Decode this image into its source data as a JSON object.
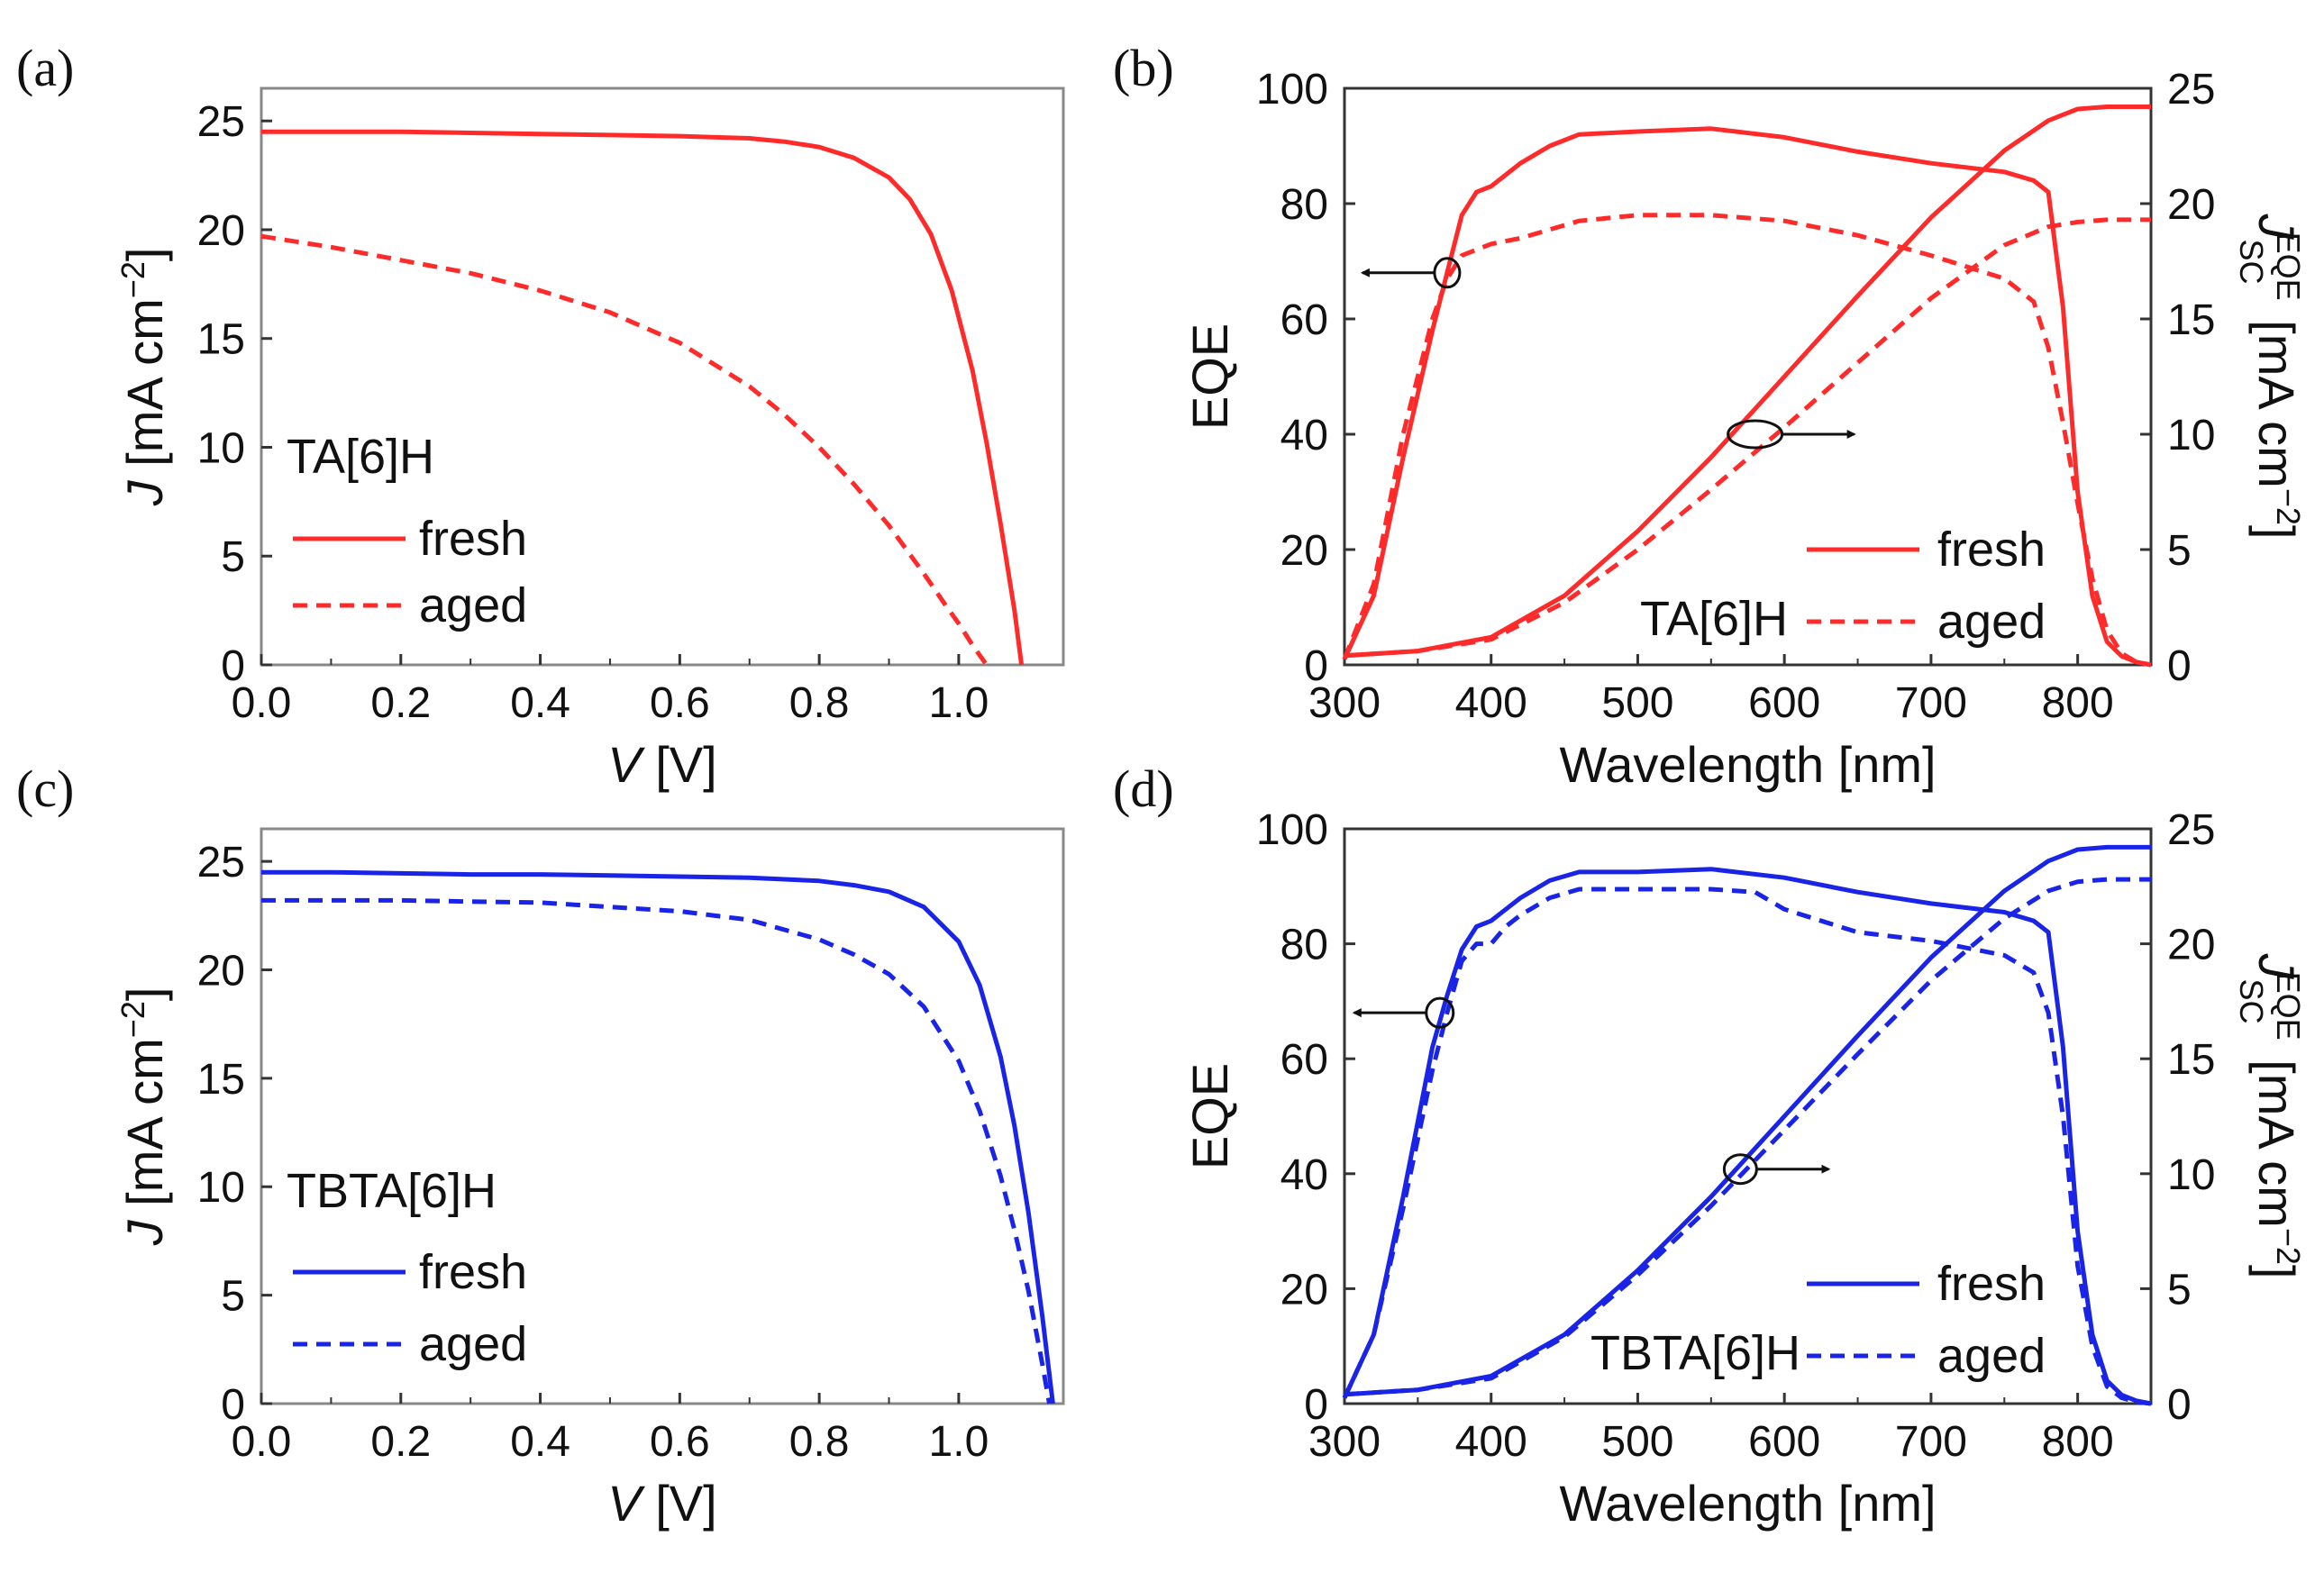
{
  "chart_data": [
    {
      "id": "a",
      "type": "line",
      "panel_label": "(a)",
      "sample_label": "TA[6]H",
      "xlabel": {
        "var": "V",
        "unit": " [V]"
      },
      "ylabel": {
        "var": "J",
        "unit": " [mA cm",
        "sup": "−2",
        "close": "]"
      },
      "xlim": [
        0,
        1.15
      ],
      "ylim": [
        0,
        26.5
      ],
      "xticks": [
        0,
        0.2,
        0.4,
        0.6,
        0.8,
        1.0
      ],
      "xtick_labels": [
        "0.0",
        "0.2",
        "0.4",
        "0.6",
        "0.8",
        "1.0"
      ],
      "yticks": [
        0,
        5,
        10,
        15,
        20,
        25
      ],
      "ytick_labels": [
        "0",
        "5",
        "10",
        "15",
        "20",
        "25"
      ],
      "color": "#ff2b2b",
      "series": [
        {
          "name": "fresh",
          "style": "solid",
          "axis": "left",
          "x": [
            0,
            0.1,
            0.2,
            0.3,
            0.4,
            0.5,
            0.6,
            0.7,
            0.75,
            0.8,
            0.85,
            0.9,
            0.93,
            0.96,
            0.99,
            1.02,
            1.04,
            1.06,
            1.08,
            1.09
          ],
          "y": [
            24.5,
            24.5,
            24.5,
            24.45,
            24.4,
            24.35,
            24.3,
            24.2,
            24.05,
            23.8,
            23.3,
            22.4,
            21.4,
            19.8,
            17.2,
            13.5,
            10.2,
            6.5,
            2.5,
            0
          ]
        },
        {
          "name": "aged",
          "style": "dashed",
          "axis": "left",
          "x": [
            0,
            0.1,
            0.2,
            0.3,
            0.4,
            0.5,
            0.6,
            0.7,
            0.75,
            0.8,
            0.85,
            0.9,
            0.95,
            0.98,
            1.0,
            1.02,
            1.04
          ],
          "y": [
            19.7,
            19.2,
            18.6,
            18.0,
            17.2,
            16.2,
            14.8,
            12.8,
            11.5,
            10.0,
            8.3,
            6.4,
            4.2,
            2.8,
            1.9,
            0.9,
            0
          ]
        }
      ]
    },
    {
      "id": "b",
      "type": "line",
      "panel_label": "(b)",
      "sample_label": "TA[6]H",
      "xlabel": "Wavelength [nm]",
      "ylabel": "EQE",
      "y2label": {
        "main": "J",
        "sub": "SC",
        "sup": "EQE",
        "unit": " [mA cm",
        "unit_sup": "−2",
        "close": "]"
      },
      "xlim": [
        300,
        850
      ],
      "ylim": [
        0,
        100
      ],
      "y2lim": [
        0,
        25
      ],
      "xticks": [
        300,
        400,
        500,
        600,
        700,
        800
      ],
      "xtick_labels": [
        "300",
        "400",
        "500",
        "600",
        "700",
        "800"
      ],
      "yticks": [
        0,
        20,
        40,
        60,
        80,
        100
      ],
      "ytick_labels": [
        "0",
        "20",
        "40",
        "60",
        "80",
        "100"
      ],
      "y2ticks": [
        0,
        5,
        10,
        15,
        20,
        25
      ],
      "y2tick_labels": [
        "0",
        "5",
        "10",
        "15",
        "20",
        "25"
      ],
      "color": "#ff2b2b",
      "series": [
        {
          "name": "fresh",
          "style": "solid",
          "axis": "left",
          "x": [
            300,
            320,
            340,
            360,
            370,
            380,
            390,
            400,
            410,
            420,
            440,
            460,
            500,
            550,
            600,
            650,
            700,
            750,
            770,
            780,
            790,
            800,
            810,
            820,
            830,
            840,
            850
          ],
          "y": [
            1,
            12,
            36,
            58,
            68,
            78,
            82,
            83,
            85,
            87,
            90,
            92,
            92.5,
            93,
            91.5,
            89,
            87,
            85.5,
            84,
            82,
            62,
            30,
            12,
            4,
            1.5,
            0.5,
            0
          ]
        },
        {
          "name": "aged",
          "style": "dashed",
          "axis": "left",
          "x": [
            300,
            320,
            340,
            360,
            370,
            380,
            390,
            400,
            420,
            460,
            500,
            550,
            600,
            650,
            700,
            750,
            770,
            780,
            790,
            800,
            810,
            820,
            830,
            840,
            850
          ],
          "y": [
            1,
            14,
            40,
            60,
            67,
            71,
            72,
            73,
            74,
            77,
            78,
            78,
            77,
            74.5,
            71,
            67,
            63,
            55,
            42,
            28,
            15,
            6,
            2,
            0.5,
            0
          ]
        },
        {
          "name": "fresh_jsc",
          "style": "solid",
          "axis": "right",
          "x": [
            300,
            350,
            400,
            450,
            500,
            550,
            600,
            650,
            700,
            750,
            780,
            800,
            820,
            850
          ],
          "y": [
            0.4,
            0.6,
            1.2,
            3.0,
            5.8,
            9.0,
            12.5,
            16.0,
            19.4,
            22.3,
            23.6,
            24.1,
            24.2,
            24.2
          ]
        },
        {
          "name": "aged_jsc",
          "style": "dashed",
          "axis": "right",
          "x": [
            300,
            350,
            400,
            450,
            500,
            550,
            600,
            650,
            700,
            750,
            780,
            800,
            820,
            850
          ],
          "y": [
            0.4,
            0.6,
            1.1,
            2.7,
            5.0,
            7.6,
            10.3,
            13.1,
            15.9,
            18.2,
            19.0,
            19.2,
            19.3,
            19.3
          ]
        }
      ]
    },
    {
      "id": "c",
      "type": "line",
      "panel_label": "(c)",
      "sample_label": "TBTA[6]H",
      "xlabel": {
        "var": "V",
        "unit": " [V]"
      },
      "ylabel": {
        "var": "J",
        "unit": " [mA cm",
        "sup": "−2",
        "close": "]"
      },
      "xlim": [
        0,
        1.15
      ],
      "ylim": [
        0,
        26.5
      ],
      "xticks": [
        0,
        0.2,
        0.4,
        0.6,
        0.8,
        1.0
      ],
      "xtick_labels": [
        "0.0",
        "0.2",
        "0.4",
        "0.6",
        "0.8",
        "1.0"
      ],
      "yticks": [
        0,
        5,
        10,
        15,
        20,
        25
      ],
      "ytick_labels": [
        "0",
        "5",
        "10",
        "15",
        "20",
        "25"
      ],
      "color": "#1a24e6",
      "series": [
        {
          "name": "fresh",
          "style": "solid",
          "axis": "left",
          "x": [
            0,
            0.1,
            0.2,
            0.3,
            0.4,
            0.5,
            0.6,
            0.7,
            0.8,
            0.85,
            0.9,
            0.95,
            1.0,
            1.03,
            1.06,
            1.08,
            1.1,
            1.12,
            1.135
          ],
          "y": [
            24.5,
            24.5,
            24.45,
            24.4,
            24.4,
            24.35,
            24.3,
            24.25,
            24.1,
            23.9,
            23.6,
            22.9,
            21.3,
            19.3,
            16.0,
            12.8,
            8.8,
            4.0,
            0
          ]
        },
        {
          "name": "aged",
          "style": "dashed",
          "axis": "left",
          "x": [
            0,
            0.1,
            0.2,
            0.3,
            0.4,
            0.5,
            0.6,
            0.7,
            0.8,
            0.85,
            0.9,
            0.95,
            1.0,
            1.03,
            1.06,
            1.08,
            1.1,
            1.12,
            1.13
          ],
          "y": [
            23.2,
            23.2,
            23.2,
            23.15,
            23.1,
            22.9,
            22.7,
            22.3,
            21.4,
            20.7,
            19.8,
            18.3,
            15.8,
            13.5,
            10.5,
            8.0,
            5.2,
            1.8,
            0
          ]
        }
      ]
    },
    {
      "id": "d",
      "type": "line",
      "panel_label": "(d)",
      "sample_label": "TBTA[6]H",
      "xlabel": "Wavelength [nm]",
      "ylabel": "EQE",
      "y2label": {
        "main": "J",
        "sub": "SC",
        "sup": "EQE",
        "unit": " [mA cm",
        "unit_sup": "−2",
        "close": "]"
      },
      "xlim": [
        300,
        850
      ],
      "ylim": [
        0,
        100
      ],
      "y2lim": [
        0,
        25
      ],
      "xticks": [
        300,
        400,
        500,
        600,
        700,
        800
      ],
      "xtick_labels": [
        "300",
        "400",
        "500",
        "600",
        "700",
        "800"
      ],
      "yticks": [
        0,
        20,
        40,
        60,
        80,
        100
      ],
      "ytick_labels": [
        "0",
        "20",
        "40",
        "60",
        "80",
        "100"
      ],
      "y2ticks": [
        0,
        5,
        10,
        15,
        20,
        25
      ],
      "y2tick_labels": [
        "0",
        "5",
        "10",
        "15",
        "20",
        "25"
      ],
      "color": "#1a24e6",
      "series": [
        {
          "name": "fresh",
          "style": "solid",
          "axis": "left",
          "x": [
            300,
            320,
            340,
            360,
            370,
            380,
            390,
            400,
            410,
            420,
            440,
            460,
            500,
            550,
            600,
            650,
            700,
            750,
            770,
            780,
            790,
            800,
            810,
            820,
            830,
            840,
            850
          ],
          "y": [
            1,
            12,
            36,
            62,
            71,
            79,
            83,
            84,
            86,
            88,
            91,
            92.5,
            92.5,
            93,
            91.5,
            89,
            87,
            85.5,
            84,
            82,
            62,
            30,
            12,
            4,
            1.5,
            0.5,
            0
          ]
        },
        {
          "name": "aged",
          "style": "dashed",
          "axis": "left",
          "x": [
            300,
            320,
            340,
            360,
            370,
            380,
            390,
            400,
            410,
            420,
            440,
            460,
            500,
            550,
            580,
            600,
            650,
            700,
            750,
            770,
            780,
            790,
            800,
            810,
            820,
            830,
            840,
            850
          ],
          "y": [
            1,
            12,
            34,
            58,
            68,
            77,
            80,
            80,
            83,
            85,
            88,
            89.5,
            89.5,
            89.5,
            89,
            86,
            82,
            80.5,
            78,
            75,
            68,
            50,
            24,
            10,
            3,
            1,
            0.3,
            0
          ]
        },
        {
          "name": "fresh_jsc",
          "style": "solid",
          "axis": "right",
          "x": [
            300,
            350,
            400,
            450,
            500,
            550,
            600,
            650,
            700,
            750,
            780,
            800,
            820,
            850
          ],
          "y": [
            0.4,
            0.6,
            1.2,
            3.0,
            5.8,
            9.0,
            12.5,
            16.0,
            19.4,
            22.3,
            23.6,
            24.1,
            24.2,
            24.2
          ]
        },
        {
          "name": "aged_jsc",
          "style": "dashed",
          "axis": "right",
          "x": [
            300,
            350,
            400,
            450,
            500,
            550,
            600,
            650,
            700,
            750,
            780,
            800,
            820,
            850
          ],
          "y": [
            0.4,
            0.6,
            1.1,
            2.9,
            5.6,
            8.6,
            11.9,
            15.2,
            18.4,
            21.1,
            22.3,
            22.7,
            22.8,
            22.8
          ]
        }
      ]
    }
  ]
}
